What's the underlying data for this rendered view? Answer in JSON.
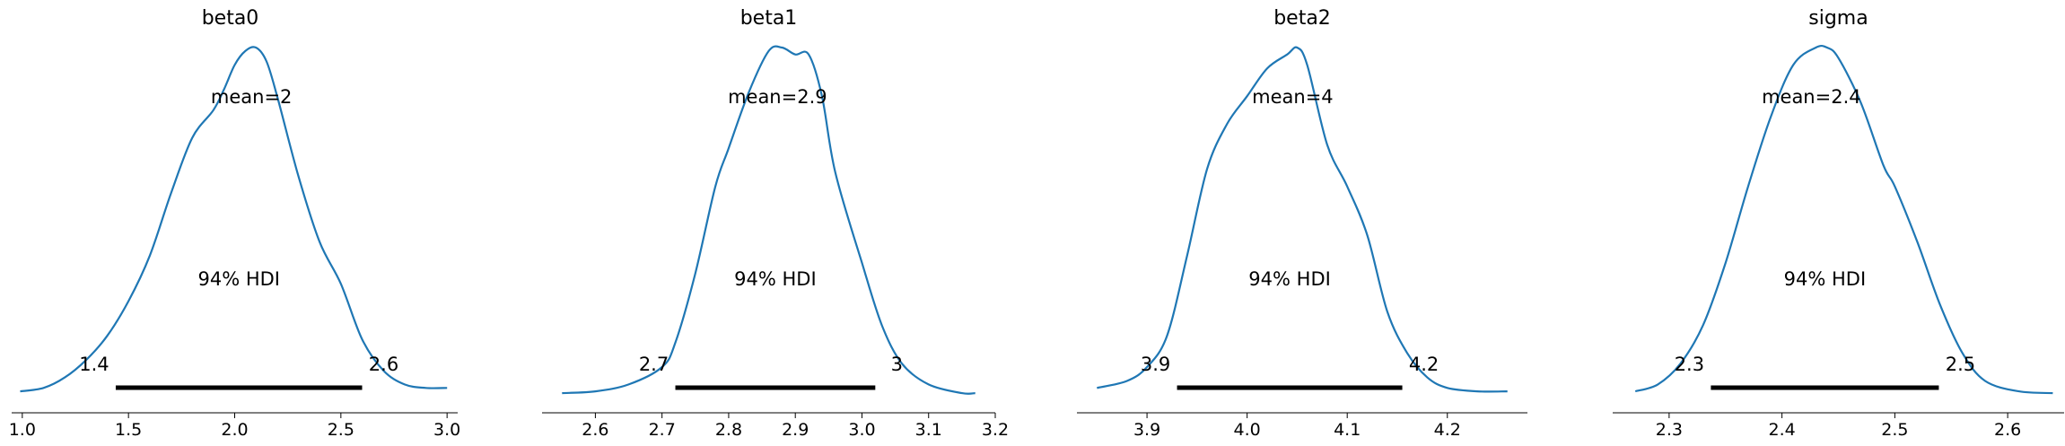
{
  "chart_data": [
    {
      "type": "line",
      "title": "beta0",
      "mean_label": "mean=2",
      "hdi_label": "94% HDI",
      "hdi": [
        1.44,
        2.6
      ],
      "hdi_low_label": "1.4",
      "hdi_high_label": "2.6",
      "xlim": [
        0.95,
        3.05
      ],
      "x_ticks": [
        1.0,
        1.5,
        2.0,
        2.5,
        3.0
      ],
      "x_tick_labels": [
        "1.0",
        "1.5",
        "2.0",
        "2.5",
        "3.0"
      ],
      "x": [
        0.99,
        1.1,
        1.2,
        1.3,
        1.4,
        1.5,
        1.6,
        1.7,
        1.8,
        1.9,
        1.95,
        2.0,
        2.05,
        2.1,
        2.15,
        2.2,
        2.3,
        2.4,
        2.5,
        2.6,
        2.7,
        2.8,
        2.9,
        3.0
      ],
      "y": [
        0.01,
        0.02,
        0.05,
        0.1,
        0.17,
        0.27,
        0.4,
        0.58,
        0.74,
        0.82,
        0.88,
        0.95,
        0.99,
        1.0,
        0.96,
        0.86,
        0.63,
        0.44,
        0.32,
        0.16,
        0.07,
        0.03,
        0.02,
        0.02
      ]
    },
    {
      "type": "line",
      "title": "beta1",
      "mean_label": "mean=2.9",
      "hdi_label": "94% HDI",
      "hdi": [
        2.72,
        3.02
      ],
      "hdi_low_label": "2.7",
      "hdi_high_label": "3",
      "xlim": [
        2.52,
        3.2
      ],
      "x_ticks": [
        2.6,
        2.7,
        2.8,
        2.9,
        3.0,
        3.1,
        3.2
      ],
      "x_tick_labels": [
        "2.6",
        "2.7",
        "2.8",
        "2.9",
        "3.0",
        "3.1",
        "3.2"
      ],
      "x": [
        2.55,
        2.6,
        2.65,
        2.7,
        2.72,
        2.75,
        2.78,
        2.8,
        2.83,
        2.86,
        2.88,
        2.9,
        2.92,
        2.94,
        2.96,
        3.0,
        3.03,
        3.06,
        3.1,
        3.15,
        3.17
      ],
      "y": [
        0.005,
        0.01,
        0.03,
        0.08,
        0.15,
        0.35,
        0.6,
        0.71,
        0.87,
        0.99,
        1.0,
        0.98,
        0.98,
        0.86,
        0.64,
        0.38,
        0.2,
        0.09,
        0.03,
        0.005,
        0.005
      ]
    },
    {
      "type": "line",
      "title": "beta2",
      "mean_label": "mean=4",
      "hdi_label": "94% HDI",
      "hdi": [
        3.93,
        4.155
      ],
      "hdi_low_label": "3.9",
      "hdi_high_label": "4.2",
      "xlim": [
        3.83,
        4.28
      ],
      "x_ticks": [
        3.9,
        4.0,
        4.1,
        4.2
      ],
      "x_tick_labels": [
        "3.9",
        "4.0",
        "4.1",
        "4.2"
      ],
      "x": [
        3.85,
        3.88,
        3.9,
        3.92,
        3.94,
        3.96,
        3.98,
        4.0,
        4.02,
        4.04,
        4.05,
        4.06,
        4.08,
        4.1,
        4.12,
        4.14,
        4.16,
        4.18,
        4.2,
        4.23,
        4.26
      ],
      "y": [
        0.02,
        0.04,
        0.08,
        0.17,
        0.4,
        0.65,
        0.78,
        0.86,
        0.94,
        0.98,
        1.0,
        0.95,
        0.72,
        0.6,
        0.46,
        0.24,
        0.12,
        0.05,
        0.02,
        0.01,
        0.01
      ]
    },
    {
      "type": "line",
      "title": "sigma",
      "mean_label": "mean=2.4",
      "hdi_label": "94% HDI",
      "hdi": [
        2.337,
        2.539
      ],
      "hdi_low_label": "2.3",
      "hdi_high_label": "2.5",
      "xlim": [
        2.25,
        2.65
      ],
      "x_ticks": [
        2.3,
        2.4,
        2.5,
        2.6
      ],
      "x_tick_labels": [
        "2.3",
        "2.4",
        "2.5",
        "2.6"
      ],
      "x": [
        2.27,
        2.29,
        2.31,
        2.33,
        2.35,
        2.37,
        2.39,
        2.41,
        2.43,
        2.44,
        2.45,
        2.47,
        2.49,
        2.5,
        2.52,
        2.54,
        2.56,
        2.58,
        2.61,
        2.64
      ],
      "y": [
        0.01,
        0.03,
        0.09,
        0.2,
        0.38,
        0.6,
        0.8,
        0.95,
        1.0,
        1.0,
        0.97,
        0.84,
        0.66,
        0.6,
        0.44,
        0.26,
        0.12,
        0.04,
        0.01,
        0.005
      ]
    }
  ]
}
